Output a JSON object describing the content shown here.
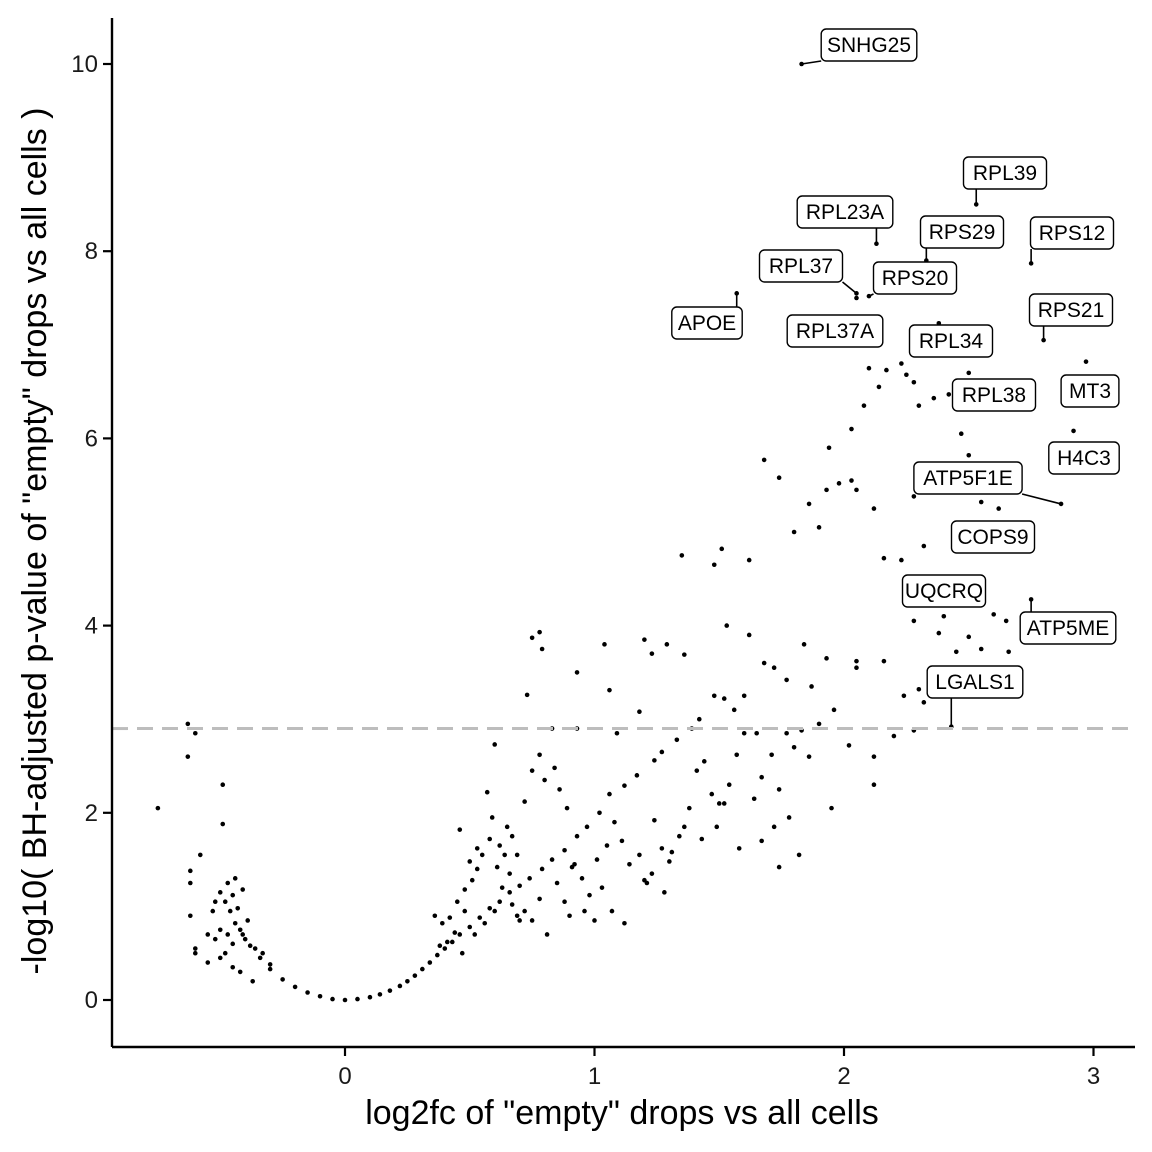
{
  "chart_data": {
    "type": "scatter",
    "title": "",
    "xlabel": "log2fc of \"empty\" drops vs all cells",
    "ylabel": "-log10( BH-adjusted p-value of \"empty\" drops vs all cells )",
    "xlim": [
      -0.93,
      3.17
    ],
    "ylim": [
      -0.5,
      10.5
    ],
    "x_ticks": [
      0,
      1,
      2,
      3
    ],
    "y_ticks": [
      0,
      2,
      4,
      6,
      8,
      10
    ],
    "grid": false,
    "threshold": 2.9,
    "colors": {
      "points": "#000000",
      "threshold_line": "#bdbdbd",
      "axis": "#000000"
    },
    "labeled_genes": [
      {
        "label": "SNHG25",
        "x": 1.83,
        "y": 10.0
      },
      {
        "label": "RPL39",
        "x": 2.53,
        "y": 8.5
      },
      {
        "label": "RPL23A",
        "x": 2.13,
        "y": 8.08
      },
      {
        "label": "RPS29",
        "x": 2.33,
        "y": 7.9
      },
      {
        "label": "RPS12",
        "x": 2.75,
        "y": 7.87
      },
      {
        "label": "RPL37",
        "x": 2.05,
        "y": 7.55
      },
      {
        "label": "RPS20",
        "x": 2.1,
        "y": 7.52
      },
      {
        "label": "APOE",
        "x": 1.57,
        "y": 7.55
      },
      {
        "label": "RPL37A",
        "x": 2.05,
        "y": 7.5
      },
      {
        "label": "RPS21",
        "x": 2.8,
        "y": 7.05
      },
      {
        "label": "RPL34",
        "x": 2.38,
        "y": 7.23
      },
      {
        "label": "MT3",
        "x": 2.97,
        "y": 6.82
      },
      {
        "label": "RPL38",
        "x": 2.5,
        "y": 6.7
      },
      {
        "label": "H4C3",
        "x": 2.92,
        "y": 6.08
      },
      {
        "label": "ATP5F1E",
        "x": 2.87,
        "y": 5.3
      },
      {
        "label": "COPS9",
        "x": 2.6,
        "y": 4.85
      },
      {
        "label": "UQCRQ",
        "x": 2.4,
        "y": 4.1
      },
      {
        "label": "ATP5ME",
        "x": 2.75,
        "y": 4.28
      },
      {
        "label": "LGALS1",
        "x": 2.43,
        "y": 2.92
      }
    ],
    "series": [
      {
        "points": [
          [
            -0.75,
            2.05
          ],
          [
            -0.63,
            2.95
          ],
          [
            -0.63,
            2.6
          ],
          [
            -0.6,
            2.85
          ],
          [
            -0.49,
            2.3
          ],
          [
            -0.49,
            1.88
          ],
          [
            -0.62,
            1.38
          ],
          [
            -0.62,
            1.25
          ],
          [
            -0.58,
            1.55
          ],
          [
            -0.6,
            0.55
          ],
          [
            -0.6,
            0.5
          ],
          [
            -0.62,
            0.9
          ],
          [
            -0.55,
            0.4
          ],
          [
            0.75,
            3.87
          ],
          [
            0.78,
            3.93
          ],
          [
            0.79,
            3.75
          ],
          [
            0.73,
            3.26
          ],
          [
            0.83,
            2.9
          ],
          [
            0.93,
            2.9
          ],
          [
            0.6,
            2.73
          ],
          [
            1.04,
            3.8
          ],
          [
            0.93,
            3.5
          ],
          [
            1.06,
            3.31
          ],
          [
            1.2,
            3.85
          ],
          [
            1.23,
            3.7
          ],
          [
            1.29,
            3.8
          ],
          [
            1.36,
            3.69
          ],
          [
            1.09,
            2.85
          ],
          [
            1.18,
            3.08
          ],
          [
            1.35,
            4.75
          ],
          [
            1.48,
            4.65
          ],
          [
            1.51,
            4.82
          ],
          [
            1.53,
            4.0
          ],
          [
            1.62,
            4.7
          ],
          [
            1.68,
            5.77
          ],
          [
            1.74,
            5.58
          ],
          [
            1.8,
            5.0
          ],
          [
            1.86,
            5.3
          ],
          [
            1.9,
            5.05
          ],
          [
            1.93,
            5.45
          ],
          [
            1.94,
            5.9
          ],
          [
            1.98,
            5.52
          ],
          [
            2.03,
            5.55
          ],
          [
            2.05,
            5.45
          ],
          [
            2.03,
            6.1
          ],
          [
            2.08,
            6.35
          ],
          [
            2.1,
            6.75
          ],
          [
            2.14,
            6.55
          ],
          [
            2.17,
            6.73
          ],
          [
            2.23,
            6.8
          ],
          [
            2.25,
            6.68
          ],
          [
            2.28,
            6.6
          ],
          [
            2.3,
            6.35
          ],
          [
            2.36,
            6.43
          ],
          [
            2.42,
            6.47
          ],
          [
            2.47,
            6.05
          ],
          [
            2.5,
            5.82
          ],
          [
            2.52,
            5.65
          ],
          [
            2.57,
            5.52
          ],
          [
            2.62,
            5.25
          ],
          [
            2.55,
            5.32
          ],
          [
            2.28,
            5.38
          ],
          [
            2.32,
            4.85
          ],
          [
            2.12,
            5.25
          ],
          [
            2.16,
            4.72
          ],
          [
            2.23,
            4.7
          ],
          [
            2.35,
            4.35
          ],
          [
            2.49,
            4.48
          ],
          [
            2.55,
            4.22
          ],
          [
            2.6,
            4.12
          ],
          [
            2.65,
            4.05
          ],
          [
            2.5,
            3.88
          ],
          [
            2.38,
            3.92
          ],
          [
            2.28,
            4.05
          ],
          [
            2.16,
            3.62
          ],
          [
            2.05,
            3.62
          ],
          [
            1.96,
            3.1
          ],
          [
            2.24,
            3.25
          ],
          [
            2.3,
            3.32
          ],
          [
            2.32,
            3.18
          ],
          [
            2.45,
            3.72
          ],
          [
            2.55,
            3.75
          ],
          [
            2.66,
            3.72
          ],
          [
            2.6,
            3.5
          ],
          [
            2.2,
            2.82
          ],
          [
            2.28,
            2.88
          ],
          [
            2.12,
            2.6
          ],
          [
            2.02,
            2.72
          ],
          [
            2.12,
            2.3
          ],
          [
            2.05,
            3.55
          ],
          [
            1.93,
            3.65
          ],
          [
            1.87,
            3.35
          ],
          [
            1.84,
            3.8
          ],
          [
            1.77,
            3.42
          ],
          [
            1.72,
            3.55
          ],
          [
            1.68,
            3.6
          ],
          [
            1.62,
            3.9
          ],
          [
            1.6,
            3.25
          ],
          [
            1.56,
            3.1
          ],
          [
            1.52,
            3.22
          ],
          [
            1.48,
            3.25
          ],
          [
            1.42,
            3.0
          ],
          [
            1.39,
            2.9
          ],
          [
            1.33,
            2.78
          ],
          [
            1.27,
            2.65
          ],
          [
            1.24,
            2.56
          ],
          [
            1.17,
            2.4
          ],
          [
            1.12,
            2.29
          ],
          [
            1.06,
            2.2
          ],
          [
            1.02,
            2.0
          ],
          [
            0.97,
            1.85
          ],
          [
            0.93,
            1.75
          ],
          [
            0.88,
            1.6
          ],
          [
            0.83,
            1.5
          ],
          [
            0.79,
            1.4
          ],
          [
            0.74,
            1.3
          ],
          [
            0.7,
            1.22
          ],
          [
            0.66,
            1.15
          ],
          [
            0.62,
            1.05
          ],
          [
            0.58,
            0.98
          ],
          [
            0.54,
            0.88
          ],
          [
            0.5,
            0.78
          ],
          [
            0.46,
            0.7
          ],
          [
            0.43,
            0.62
          ],
          [
            0.4,
            0.55
          ],
          [
            0.37,
            0.48
          ],
          [
            0.34,
            0.4
          ],
          [
            0.31,
            0.33
          ],
          [
            0.28,
            0.26
          ],
          [
            0.25,
            0.2
          ],
          [
            0.22,
            0.15
          ],
          [
            0.18,
            0.1
          ],
          [
            0.14,
            0.06
          ],
          [
            0.1,
            0.03
          ],
          [
            0.05,
            0.01
          ],
          [
            0.0,
            0.0
          ],
          [
            -0.05,
            0.01
          ],
          [
            -0.1,
            0.04
          ],
          [
            -0.15,
            0.08
          ],
          [
            -0.2,
            0.14
          ],
          [
            -0.25,
            0.22
          ],
          [
            -0.3,
            0.33
          ],
          [
            -0.34,
            0.45
          ],
          [
            -0.38,
            0.58
          ],
          [
            -0.41,
            0.7
          ],
          [
            -0.44,
            0.82
          ],
          [
            -0.46,
            0.95
          ],
          [
            -0.48,
            1.05
          ],
          [
            -0.5,
            1.15
          ],
          [
            -0.52,
            1.05
          ],
          [
            -0.53,
            0.95
          ],
          [
            -0.47,
            1.25
          ],
          [
            -0.45,
            1.12
          ],
          [
            -0.43,
            0.98
          ],
          [
            -0.42,
            0.75
          ],
          [
            -0.4,
            0.65
          ],
          [
            -0.39,
            0.85
          ],
          [
            -0.36,
            0.55
          ],
          [
            -0.33,
            0.5
          ],
          [
            -0.3,
            0.38
          ],
          [
            -0.45,
            0.6
          ],
          [
            -0.47,
            0.7
          ],
          [
            -0.5,
            0.75
          ],
          [
            -0.52,
            0.65
          ],
          [
            -0.55,
            0.7
          ],
          [
            -0.44,
            1.3
          ],
          [
            -0.41,
            1.18
          ],
          [
            -0.48,
            0.5
          ],
          [
            -0.37,
            0.2
          ],
          [
            -0.42,
            0.3
          ],
          [
            -0.45,
            0.35
          ],
          [
            -0.5,
            0.45
          ],
          [
            0.57,
            2.22
          ],
          [
            0.59,
            1.95
          ],
          [
            0.62,
            1.65
          ],
          [
            0.65,
            1.85
          ],
          [
            0.67,
            1.75
          ],
          [
            0.69,
            1.55
          ],
          [
            0.72,
            2.12
          ],
          [
            0.75,
            2.45
          ],
          [
            0.78,
            2.62
          ],
          [
            0.8,
            2.35
          ],
          [
            0.84,
            2.48
          ],
          [
            0.86,
            2.25
          ],
          [
            0.89,
            2.05
          ],
          [
            0.91,
            1.42
          ],
          [
            0.95,
            1.3
          ],
          [
            0.98,
            1.12
          ],
          [
            1.01,
            1.5
          ],
          [
            1.05,
            1.65
          ],
          [
            1.08,
            1.9
          ],
          [
            1.11,
            1.7
          ],
          [
            1.14,
            1.45
          ],
          [
            1.18,
            1.55
          ],
          [
            1.21,
            1.25
          ],
          [
            1.24,
            1.92
          ],
          [
            1.27,
            1.62
          ],
          [
            1.3,
            1.48
          ],
          [
            1.34,
            1.75
          ],
          [
            1.38,
            2.05
          ],
          [
            1.41,
            2.45
          ],
          [
            1.44,
            2.55
          ],
          [
            1.47,
            2.2
          ],
          [
            1.5,
            2.1
          ],
          [
            1.54,
            2.3
          ],
          [
            1.57,
            2.62
          ],
          [
            1.6,
            2.85
          ],
          [
            1.64,
            2.15
          ],
          [
            1.67,
            2.38
          ],
          [
            1.71,
            2.62
          ],
          [
            1.74,
            2.25
          ],
          [
            1.77,
            2.85
          ],
          [
            1.8,
            2.7
          ],
          [
            1.83,
            2.88
          ],
          [
            1.86,
            2.6
          ],
          [
            1.9,
            2.95
          ],
          [
            1.95,
            2.05
          ],
          [
            1.72,
            1.85
          ],
          [
            1.78,
            1.95
          ],
          [
            1.82,
            1.55
          ],
          [
            1.65,
            2.85
          ],
          [
            1.52,
            2.1
          ],
          [
            0.72,
            0.95
          ],
          [
            0.75,
            0.85
          ],
          [
            0.78,
            1.08
          ],
          [
            0.81,
            0.7
          ],
          [
            0.85,
            1.25
          ],
          [
            0.88,
            1.05
          ],
          [
            0.9,
            0.9
          ],
          [
            0.92,
            1.45
          ],
          [
            0.96,
            0.95
          ],
          [
            1.0,
            0.85
          ],
          [
            1.03,
            1.2
          ],
          [
            1.07,
            0.95
          ],
          [
            1.12,
            0.82
          ],
          [
            1.2,
            1.28
          ],
          [
            1.23,
            1.35
          ],
          [
            1.28,
            1.15
          ],
          [
            1.31,
            1.58
          ],
          [
            1.36,
            1.85
          ],
          [
            1.43,
            1.72
          ],
          [
            1.49,
            1.85
          ],
          [
            1.58,
            1.62
          ],
          [
            1.67,
            1.7
          ],
          [
            1.74,
            1.42
          ],
          [
            0.36,
            0.9
          ],
          [
            0.39,
            0.82
          ],
          [
            0.42,
            0.88
          ],
          [
            0.45,
            1.05
          ],
          [
            0.48,
            1.18
          ],
          [
            0.51,
            1.28
          ],
          [
            0.53,
            1.4
          ],
          [
            0.55,
            1.55
          ],
          [
            0.48,
            0.95
          ],
          [
            0.44,
            0.72
          ],
          [
            0.41,
            0.62
          ],
          [
            0.38,
            0.58
          ],
          [
            0.47,
            0.5
          ],
          [
            0.52,
            0.7
          ],
          [
            0.56,
            0.82
          ],
          [
            0.6,
            0.95
          ],
          [
            0.63,
            1.2
          ],
          [
            0.66,
            1.35
          ],
          [
            0.69,
            0.9
          ],
          [
            0.46,
            1.82
          ],
          [
            0.5,
            1.48
          ],
          [
            0.53,
            1.62
          ],
          [
            0.58,
            1.72
          ],
          [
            0.61,
            1.42
          ],
          [
            0.64,
            1.55
          ],
          [
            0.67,
            1.02
          ],
          [
            0.7,
            0.85
          ]
        ]
      }
    ]
  }
}
